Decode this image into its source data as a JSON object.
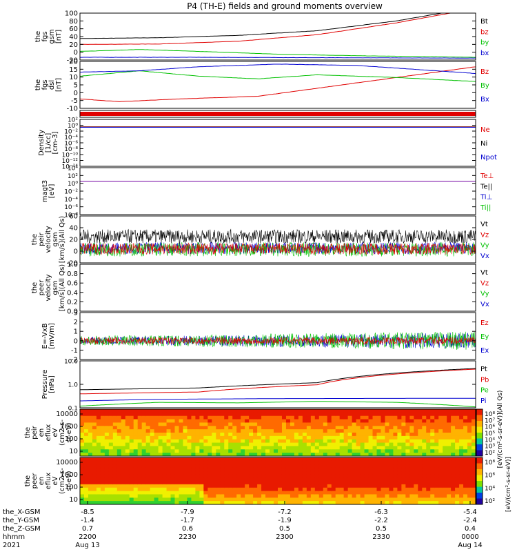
{
  "title": "P4 (TH-E) fields and ground moments overview",
  "colors": {
    "black": "#000000",
    "red": "#e00000",
    "green": "#00c000",
    "blue": "#0000d0",
    "purple": "#7000a0"
  },
  "chart_data": [
    {
      "type": "line",
      "id": "fgs_gsm",
      "ylabel_lines": [
        "the",
        "fgs",
        "gsm",
        "[nT]"
      ],
      "ylim": [
        -20,
        100
      ],
      "yticks": [
        "-20",
        "0",
        "20",
        "40",
        "60",
        "80",
        "100"
      ],
      "legend": [
        {
          "name": "Bt",
          "color": "black"
        },
        {
          "name": "bz",
          "color": "red"
        },
        {
          "name": "by",
          "color": "green"
        },
        {
          "name": "bx",
          "color": "blue"
        }
      ],
      "series": [
        {
          "name": "Bt",
          "color": "black",
          "x": [
            0,
            0.2,
            0.4,
            0.6,
            0.8,
            1.0
          ],
          "values": [
            35,
            37,
            43,
            55,
            80,
            115
          ]
        },
        {
          "name": "bz",
          "color": "red",
          "x": [
            0,
            0.2,
            0.4,
            0.6,
            0.8,
            1.0
          ],
          "values": [
            20,
            21,
            28,
            45,
            75,
            112
          ]
        },
        {
          "name": "by",
          "color": "green",
          "x": [
            0,
            0.15,
            0.3,
            0.5,
            0.7,
            1.0
          ],
          "values": [
            2,
            7,
            2,
            -5,
            -9,
            -13
          ]
        },
        {
          "name": "bx",
          "color": "blue",
          "x": [
            0,
            0.3,
            0.6,
            1.0
          ],
          "values": [
            -13,
            -13,
            -14,
            -15
          ]
        }
      ]
    },
    {
      "type": "line",
      "id": "fgs_dsl",
      "ylabel_lines": [
        "the",
        "fgs",
        "dsl",
        "[nT]"
      ],
      "ylim": [
        -15,
        20
      ],
      "yticks": [
        "-10",
        "-5",
        "0",
        "5",
        "10",
        "15",
        "20"
      ],
      "legend": [
        {
          "name": "Bz",
          "color": "red"
        },
        {
          "name": "By",
          "color": "green"
        },
        {
          "name": "Bx",
          "color": "blue"
        }
      ],
      "series": [
        {
          "name": "Bz",
          "color": "red",
          "x": [
            0,
            0.1,
            0.25,
            0.45,
            0.6,
            0.75,
            0.9,
            1.0
          ],
          "values": [
            -8,
            -10,
            -8,
            -6,
            0,
            6,
            12,
            16
          ]
        },
        {
          "name": "By",
          "color": "green",
          "x": [
            0,
            0.15,
            0.3,
            0.45,
            0.6,
            0.8,
            1.0
          ],
          "values": [
            9,
            13,
            9,
            7,
            10,
            8,
            5
          ]
        },
        {
          "name": "Bx",
          "color": "blue",
          "x": [
            0,
            0.15,
            0.3,
            0.5,
            0.7,
            0.85,
            1.0
          ],
          "values": [
            12,
            13,
            16,
            18,
            17,
            14,
            11
          ]
        }
      ]
    },
    {
      "type": "band",
      "id": "flag_bar",
      "color": "red"
    },
    {
      "type": "line",
      "id": "density",
      "ylabel_lines": [
        "Density",
        "[1/cc]",
        "[cm-3]"
      ],
      "ylim_log": [
        -14,
        2
      ],
      "yticks": [
        "10⁻¹⁴",
        "10⁻¹²",
        "10⁻¹⁰",
        "10⁻⁸",
        "10⁻⁶",
        "10⁻⁴",
        "10⁻²",
        "10⁰",
        "10²"
      ],
      "legend": [
        {
          "name": "Ne",
          "color": "red"
        },
        {
          "name": "Ni",
          "color": "black"
        },
        {
          "name": "Npot",
          "color": "blue"
        }
      ],
      "series": [
        {
          "name": "Ne",
          "color": "red",
          "x": [
            0,
            1
          ],
          "values": [
            0.3,
            0.3
          ]
        },
        {
          "name": "Ni",
          "color": "black",
          "x": [
            0,
            1
          ],
          "values": [
            0.25,
            0.25
          ]
        },
        {
          "name": "Npot",
          "color": "blue",
          "x": [
            0,
            1
          ],
          "values": [
            0.2,
            0.2
          ]
        }
      ]
    },
    {
      "type": "line",
      "id": "temperature",
      "ylabel_lines": [
        "magt3",
        "[eV]"
      ],
      "ylim_log": [
        -8,
        4
      ],
      "yticks": [
        "10⁻⁸",
        "10⁻⁶",
        "10⁻⁴",
        "10⁻²",
        "10⁰",
        "10²",
        "10⁴"
      ],
      "legend": [
        {
          "name": "Te⊥",
          "color": "red"
        },
        {
          "name": "Te||",
          "color": "black"
        },
        {
          "name": "Ti⊥",
          "color": "blue"
        },
        {
          "name": "Ti||",
          "color": "green"
        }
      ],
      "series": [
        {
          "name": "Te",
          "color": "purple",
          "x": [
            0,
            1
          ],
          "values": [
            3.2,
            3.2
          ]
        }
      ]
    },
    {
      "type": "line",
      "id": "peir_velocity",
      "ylabel_lines": [
        "the",
        "peir",
        "velocity",
        "gsm",
        "[km/s](All Qs)"
      ],
      "ylim": [
        -20,
        60
      ],
      "yticks": [
        "-20",
        "0",
        "20",
        "40",
        "60"
      ],
      "legend": [
        {
          "name": "Vt",
          "color": "black"
        },
        {
          "name": "Vz",
          "color": "red"
        },
        {
          "name": "Vy",
          "color": "green"
        },
        {
          "name": "Vx",
          "color": "blue"
        }
      ],
      "noise": [
        {
          "name": "Vt",
          "color": "black",
          "mean": 25,
          "amp": 12
        },
        {
          "name": "Vx",
          "color": "blue",
          "mean": 5,
          "amp": 10
        },
        {
          "name": "Vy",
          "color": "green",
          "mean": 3,
          "amp": 12
        },
        {
          "name": "Vz",
          "color": "red",
          "mean": 4,
          "amp": 10
        }
      ]
    },
    {
      "type": "line",
      "id": "peer_velocity",
      "ylabel_lines": [
        "the",
        "peer",
        "velocity",
        "gsm",
        "[km/s](All Qs)"
      ],
      "ylim": [
        0,
        1
      ],
      "yticks": [
        "0.0",
        "0.2",
        "0.4",
        "0.6",
        "0.8",
        "1.0"
      ],
      "legend": [
        {
          "name": "Vt",
          "color": "black"
        },
        {
          "name": "Vz",
          "color": "red"
        },
        {
          "name": "Vy",
          "color": "green"
        },
        {
          "name": "Vx",
          "color": "blue"
        }
      ]
    },
    {
      "type": "line",
      "id": "e_field",
      "ylabel_lines": [
        "E=-VxB",
        "[mV/m]"
      ],
      "ylim": [
        -2,
        3
      ],
      "yticks": [
        "-2",
        "-1",
        "0",
        "1",
        "2",
        "3"
      ],
      "legend": [
        {
          "name": "Ez",
          "color": "red"
        },
        {
          "name": "Ey",
          "color": "green"
        },
        {
          "name": "Ex",
          "color": "blue"
        }
      ],
      "noise": [
        {
          "name": "Ex",
          "color": "blue",
          "mean": 0,
          "amp": 0.4,
          "grow": 1.2
        },
        {
          "name": "Ey",
          "color": "green",
          "mean": 0,
          "amp": 0.5,
          "grow": 1.0
        },
        {
          "name": "Ez",
          "color": "red",
          "mean": 0,
          "amp": 0.35,
          "grow": 0.2
        }
      ]
    },
    {
      "type": "line",
      "id": "pressure",
      "ylabel_lines": [
        "Pressure",
        "[nPa]"
      ],
      "ylim_log": [
        -1,
        1.2
      ],
      "yticks": [
        "0.1",
        "1.0",
        "10.0"
      ],
      "legend": [
        {
          "name": "Pt",
          "color": "black"
        },
        {
          "name": "Pb",
          "color": "red"
        },
        {
          "name": "Pe",
          "color": "green"
        },
        {
          "name": "Pi",
          "color": "blue"
        }
      ],
      "series": [
        {
          "name": "Pt",
          "color": "black",
          "x": [
            0,
            0.3,
            0.6,
            1.0
          ],
          "values": [
            0.7,
            0.85,
            1.5,
            7.0
          ]
        },
        {
          "name": "Pb",
          "color": "red",
          "x": [
            0,
            0.3,
            0.6,
            1.0
          ],
          "values": [
            0.45,
            0.55,
            1.2,
            6.5
          ]
        },
        {
          "name": "Pe",
          "color": "green",
          "x": [
            0,
            0.2,
            0.4,
            0.6,
            0.8,
            1.0
          ],
          "values": [
            0.12,
            0.18,
            0.17,
            0.2,
            0.18,
            0.11
          ]
        },
        {
          "name": "Pi",
          "color": "blue",
          "x": [
            0,
            0.2,
            0.5,
            1.0
          ],
          "values": [
            0.21,
            0.25,
            0.27,
            0.28
          ]
        }
      ]
    },
    {
      "type": "heatmap",
      "id": "peir_eflux",
      "ylabel_lines": [
        "the",
        "peir",
        "en",
        "eflux",
        "eV",
        "(cm2-s-",
        "sr-eV)"
      ],
      "yticks": [
        "10",
        "100",
        "1000",
        "10000"
      ]
    },
    {
      "type": "heatmap",
      "id": "peer_eflux",
      "ylabel_lines": [
        "the",
        "peer",
        "en",
        "eflux",
        "eV",
        "(cm2-s-",
        "sr-eV)"
      ],
      "yticks": [
        "10",
        "100",
        "1000",
        "10000"
      ]
    }
  ],
  "colorbar": {
    "top_ticks": [
      "10⁸",
      "10⁷",
      "10⁶",
      "10⁵",
      "10⁴",
      "10³",
      "10²"
    ],
    "bottom_ticks": [
      "10⁸",
      "10⁶",
      "10⁴",
      "10²"
    ],
    "label": "[eV/(cm²-s-sr-eV)]",
    "label_top": "[eV/(cm²-s-sr-eV)](All Qs)"
  },
  "x_axis": {
    "rows": [
      {
        "label": "the_X-GSM",
        "values": [
          "-8.5",
          "-7.9",
          "-7.2",
          "-6.3",
          "-5.4"
        ]
      },
      {
        "label": "the_Y-GSM",
        "values": [
          "-1.4",
          "-1.7",
          "-1.9",
          "-2.2",
          "-2.4"
        ]
      },
      {
        "label": "the_Z-GSM",
        "values": [
          "0.7",
          "0.6",
          "0.5",
          "0.5",
          "0.4"
        ]
      },
      {
        "label": "hhmm",
        "values": [
          "2200",
          "2230",
          "2300",
          "2330",
          "0000"
        ]
      },
      {
        "label": "2021",
        "values": [
          "Aug 13",
          "",
          "",
          "",
          "Aug 14"
        ]
      }
    ]
  }
}
